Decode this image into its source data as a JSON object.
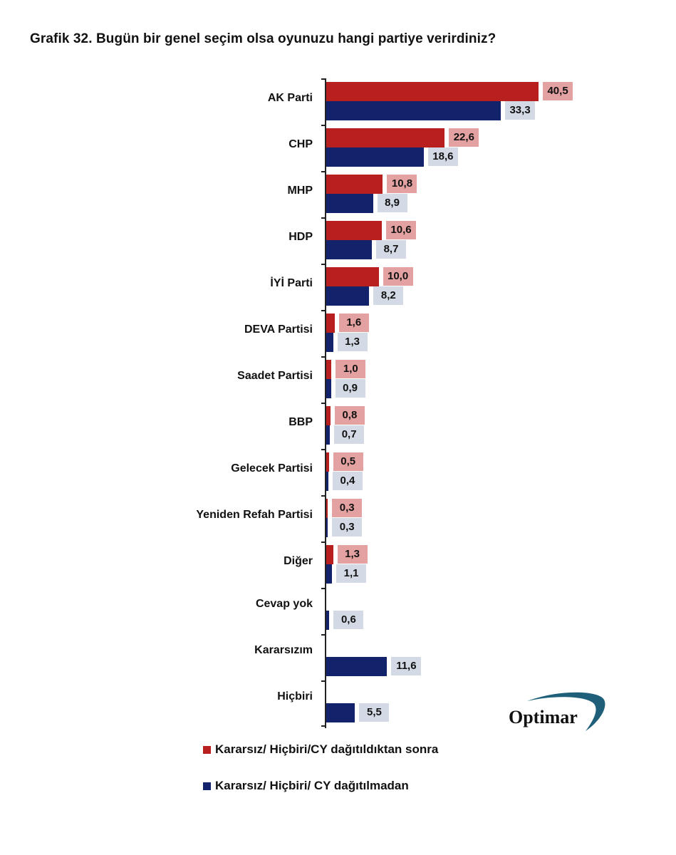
{
  "title": "Grafik 32. Bugün bir genel seçim olsa oyunuzu hangi partiye verirdiniz?",
  "logo": {
    "text": "Optimar",
    "swoosh_color": "#1f5f7a"
  },
  "legend": [
    {
      "label": "Kararsız/ Hiçbiri/CY dağıtıldıktan sonra",
      "color": "#b82020"
    },
    {
      "label": "Kararsız/ Hiçbiri/ CY dağıtılmadan",
      "color": "#13236b"
    }
  ],
  "chart_data": {
    "type": "bar",
    "orientation": "horizontal",
    "title": "Grafik 32. Bugün bir genel seçim olsa oyunuzu hangi partiye verirdiniz?",
    "xlabel": "",
    "ylabel": "",
    "grid": false,
    "legend_position": "bottom",
    "categories": [
      "AK Parti",
      "CHP",
      "MHP",
      "HDP",
      "İYİ  Parti",
      "DEVA Partisi",
      "Saadet Partisi",
      "BBP",
      "Gelecek Partisi",
      "Yeniden Refah Partisi",
      "Diğer",
      "Cevap yok",
      "Kararsızım",
      "Hiçbiri"
    ],
    "series": [
      {
        "name": "Kararsız/ Hiçbiri/CY dağıtıldıktan sonra",
        "color": "#b82020",
        "label_bg": "#e3a1a1",
        "values": [
          40.5,
          22.6,
          10.8,
          10.6,
          10.0,
          1.6,
          1.0,
          0.8,
          0.5,
          0.3,
          1.3,
          null,
          null,
          null
        ],
        "labels": [
          "40,5",
          "22,6",
          "10,8",
          "10,6",
          "10,0",
          "1,6",
          "1,0",
          "0,8",
          "0,5",
          "0,3",
          "1,3",
          "",
          "",
          ""
        ]
      },
      {
        "name": "Kararsız/ Hiçbiri/ CY dağıtılmadan",
        "color": "#13236b",
        "label_bg": "#d3dae5",
        "values": [
          33.3,
          18.6,
          8.9,
          8.7,
          8.2,
          1.3,
          0.9,
          0.7,
          0.4,
          0.3,
          1.1,
          0.6,
          11.6,
          5.5
        ],
        "labels": [
          "33,3",
          "18,6",
          "8,9",
          "8,7",
          "8,2",
          "1,3",
          "0,9",
          "0,7",
          "0,4",
          "0,3",
          "1,1",
          "0,6",
          "11,6",
          "5,5"
        ]
      }
    ],
    "xlim": [
      0,
      45
    ]
  }
}
